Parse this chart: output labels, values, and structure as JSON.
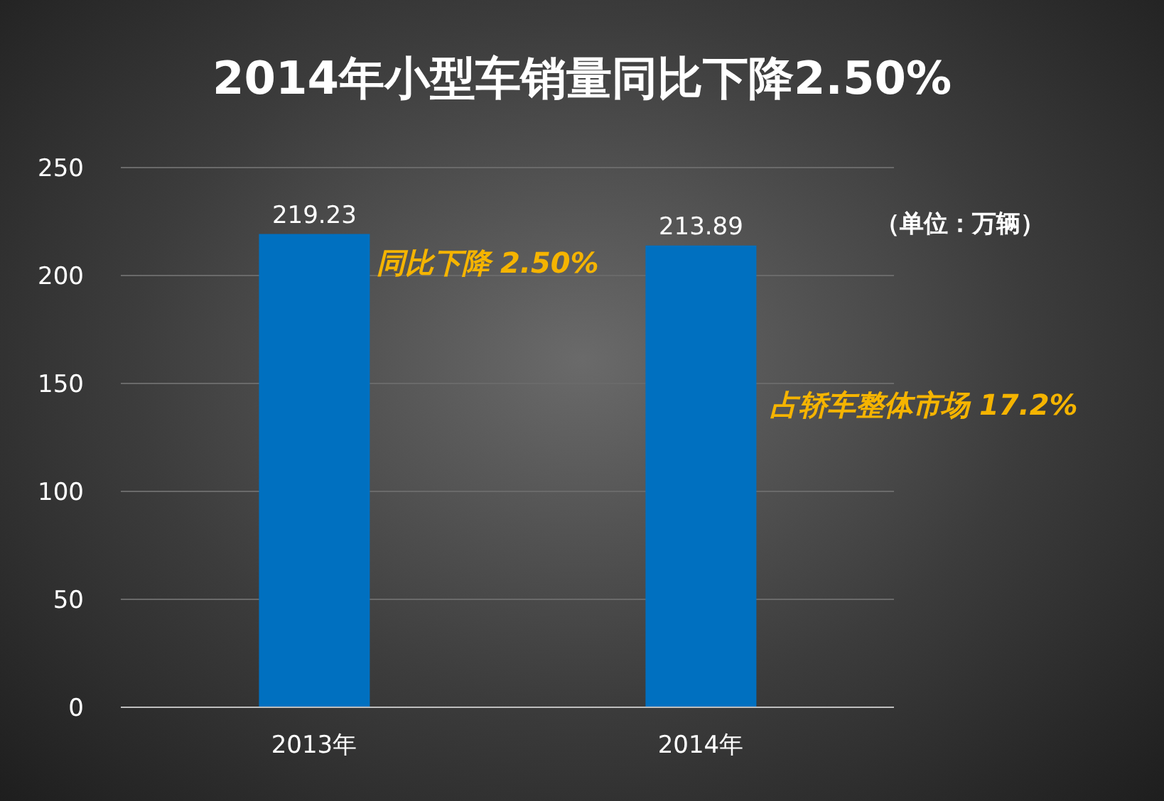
{
  "chart_data": {
    "type": "bar",
    "title": "2014年小型车销量同比下降2.50%",
    "categories": [
      "2013年",
      "2014年"
    ],
    "values": [
      219.23,
      213.89
    ],
    "color": "#0070c0",
    "ylim": [
      0,
      250
    ],
    "yticks": [
      0,
      50,
      100,
      150,
      200,
      250
    ],
    "grid": "y",
    "data_labels": true,
    "annotations": [
      "（单位：万辆）",
      "同比下降 2.50%",
      "占轿车整体市场 17.2%"
    ]
  }
}
